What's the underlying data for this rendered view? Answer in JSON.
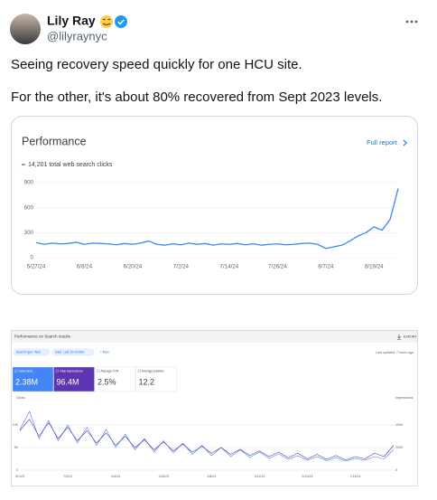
{
  "post": {
    "author": "Lily Ray",
    "handle": "@lilyraynyc",
    "text": [
      "Seeing recovery speed quickly for one HCU site.",
      "For the other, it's about 80% recovered from Sept 2023 levels."
    ]
  },
  "card1": {
    "title": "Performance",
    "link": "Full report",
    "chart_data": {
      "type": "line",
      "categories": [
        "5/27/24",
        null,
        null,
        null,
        null,
        null,
        "6/8/24",
        null,
        null,
        null,
        null,
        null,
        "6/20/24",
        null,
        null,
        null,
        null,
        null,
        "7/2/24",
        null,
        null,
        null,
        null,
        null,
        "7/14/24",
        null,
        null,
        null,
        null,
        null,
        "7/26/24",
        null,
        null,
        null,
        null,
        null,
        "8/7/24",
        null,
        null,
        null,
        null,
        null,
        "8/19/24",
        null,
        null,
        null
      ],
      "series": [
        {
          "name": "14,201 total web search clicks",
          "color": "#4285f4",
          "values": [
            180,
            160,
            175,
            165,
            170,
            185,
            160,
            175,
            170,
            165,
            155,
            170,
            160,
            175,
            200,
            160,
            150,
            165,
            155,
            175,
            160,
            170,
            150,
            165,
            160,
            170,
            155,
            165,
            150,
            160,
            165,
            155,
            160,
            170,
            175,
            160,
            110,
            130,
            150,
            200,
            260,
            300,
            370,
            330,
            460,
            830
          ]
        }
      ],
      "ylim": [
        0,
        900
      ],
      "yticks": [
        0,
        300,
        600,
        900
      ],
      "grid": true
    }
  },
  "card2": {
    "title": "Performance on Search results",
    "export": "EXPORT",
    "filters": [
      "Search type: Web",
      "Date: Last 16 months",
      "+ New"
    ],
    "updated": "Last updated: 7 hours ago",
    "metrics": [
      {
        "label": "Total clicks",
        "value": "2.38M"
      },
      {
        "label": "Total impressions",
        "value": "96.4M"
      },
      {
        "label": "Average CTR",
        "value": "2.5%"
      },
      {
        "label": "Average position",
        "value": "12.2"
      }
    ],
    "chart_data": {
      "type": "line",
      "y_label": "Clicks",
      "y2_label": "Impressions",
      "categories": [
        "5/1/23",
        null,
        null,
        null,
        null,
        "7/3/23",
        null,
        null,
        null,
        null,
        "9/4/23",
        null,
        null,
        null,
        null,
        "11/6/23",
        null,
        null,
        null,
        null,
        "1/8/24",
        null,
        null,
        null,
        null,
        "3/11/24",
        null,
        null,
        null,
        null,
        "5/13/24",
        null,
        null,
        null,
        null,
        "7/15/24",
        null,
        null,
        null,
        null
      ],
      "series": [
        {
          "color": "#4285f4",
          "values": [
            9000,
            13000,
            7000,
            11000,
            6500,
            10000,
            6000,
            9500,
            5500,
            9000,
            5000,
            8000,
            4500,
            7000,
            4000,
            6500,
            3800,
            6000,
            3500,
            5500,
            3200,
            5000,
            3000,
            4500,
            2800,
            4000,
            2600,
            3600,
            2400,
            3200,
            2200,
            3000,
            2100,
            2800,
            2000,
            2600,
            2200,
            3000,
            2500,
            4500
          ]
        },
        {
          "color": "#5e35b1",
          "axis": "y2",
          "values": [
            350000,
            450000,
            300000,
            420000,
            280000,
            380000,
            260000,
            350000,
            240000,
            330000,
            220000,
            300000,
            200000,
            270000,
            180000,
            250000,
            170000,
            230000,
            160000,
            210000,
            150000,
            200000,
            140000,
            185000,
            130000,
            170000,
            120000,
            160000,
            110000,
            150000,
            100000,
            140000,
            95000,
            130000,
            90000,
            120000,
            100000,
            150000,
            120000,
            220000
          ]
        }
      ],
      "ylim": [
        0,
        15000
      ],
      "yticks": [
        0,
        {
          "value": 5000,
          "label": "5K"
        },
        {
          "value": 10000,
          "label": "10K"
        }
      ],
      "y2lim": [
        0,
        600000
      ],
      "y2ticks": [
        0,
        {
          "value": 200000,
          "label": "200K"
        },
        {
          "value": 400000,
          "label": "400K"
        }
      ],
      "grid": true
    }
  }
}
